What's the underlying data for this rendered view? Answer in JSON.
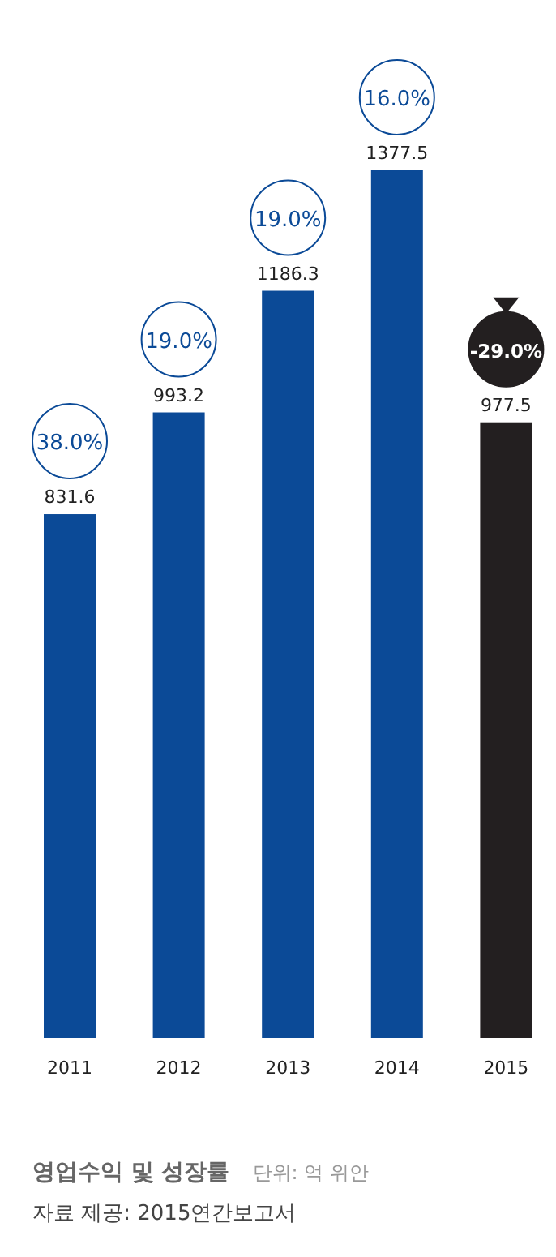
{
  "chart_data": {
    "type": "bar",
    "title": "영업수익 및 성장률",
    "categories": [
      "2011",
      "2012",
      "2013",
      "2014",
      "2015"
    ],
    "values": [
      831.6,
      993.2,
      1186.3,
      1377.5,
      977.5
    ],
    "colors": [
      "#0b4a97",
      "#0b4a97",
      "#0b4a97",
      "#0b4a97",
      "#231f20"
    ],
    "data_labels": true,
    "annotations": [
      "38.0%",
      "19.0%",
      "19.0%",
      "16.0%",
      "-29.0%",
      "단위: 억 위안",
      "자료 제공: 2015연간보고서"
    ]
  }
}
